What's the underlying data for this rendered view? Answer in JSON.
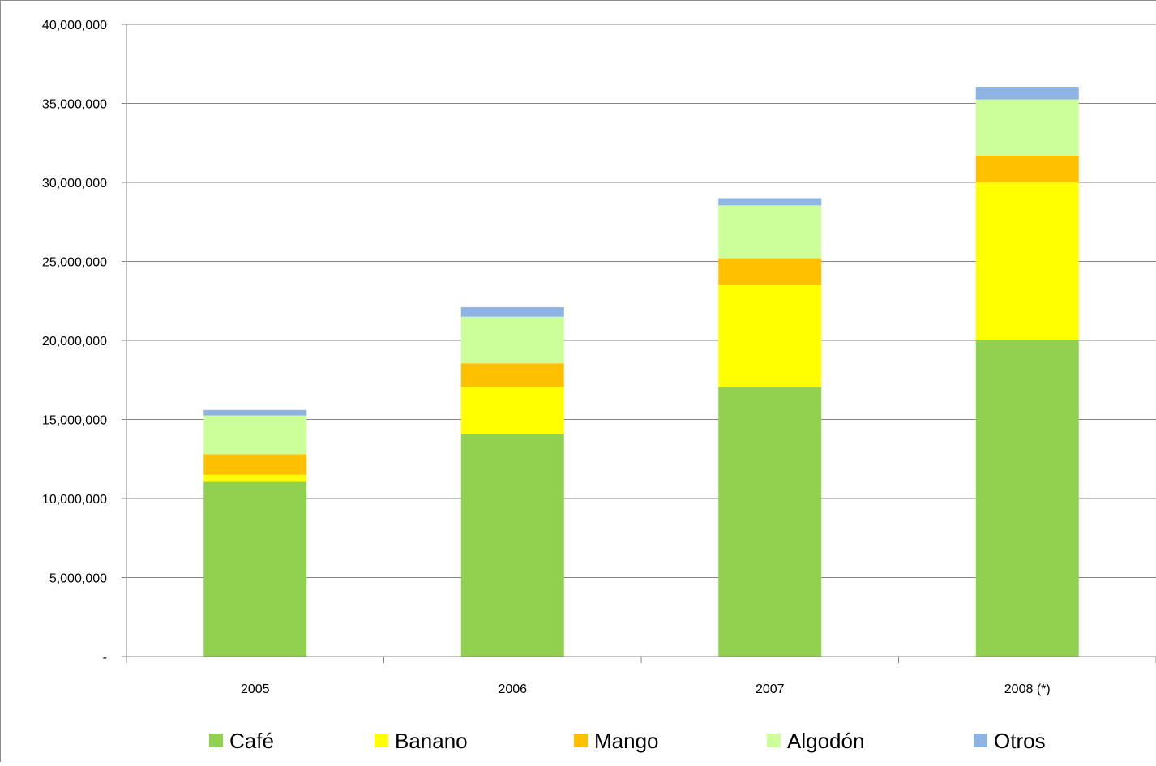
{
  "chart_data": {
    "type": "bar",
    "stacked": true,
    "categories": [
      "2005",
      "2006",
      "2007",
      "2008 (*)"
    ],
    "series": [
      {
        "name": "Café",
        "color": "#92D050",
        "values": [
          11050000,
          14050000,
          17050000,
          20050000
        ]
      },
      {
        "name": "Banano",
        "color": "#FFFF00",
        "values": [
          450000,
          3000000,
          6450000,
          9950000
        ]
      },
      {
        "name": "Mango",
        "color": "#FFC000",
        "values": [
          1300000,
          1500000,
          1700000,
          1700000
        ]
      },
      {
        "name": "Algodón",
        "color": "#CCFF99",
        "values": [
          2450000,
          2950000,
          3350000,
          3550000
        ]
      },
      {
        "name": "Otros",
        "color": "#8EB4E3",
        "values": [
          350000,
          600000,
          450000,
          800000
        ]
      }
    ],
    "yticks": [
      "-",
      "5,000,000",
      "10,000,000",
      "15,000,000",
      "20,000,000",
      "25,000,000",
      "30,000,000",
      "35,000,000",
      "40,000,000"
    ],
    "ylim": [
      0,
      40000000
    ],
    "grid": true,
    "legend_position": "bottom"
  }
}
